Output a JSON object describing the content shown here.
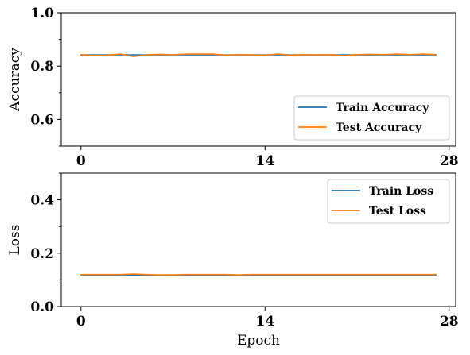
{
  "chart_data": [
    {
      "type": "line",
      "title": "",
      "xlabel": "",
      "ylabel": "Accuracy",
      "xlim": [
        -1.5,
        28.5
      ],
      "ylim": [
        0.5,
        1.0
      ],
      "xticks": [
        0,
        14,
        28
      ],
      "xtick_labels": [
        "0",
        "14",
        "28"
      ],
      "yticks": [
        0.6,
        0.8,
        1.0
      ],
      "ytick_labels": [
        "0.6",
        "0.8",
        "1.0"
      ],
      "y_minor_ticks": [
        0.5,
        0.7,
        0.9
      ],
      "grid": false,
      "legend_position": "lower-right",
      "x": [
        0,
        1,
        2,
        3,
        4,
        5,
        6,
        7,
        8,
        9,
        10,
        11,
        12,
        13,
        14,
        15,
        16,
        17,
        18,
        19,
        20,
        21,
        22,
        23,
        24,
        25,
        26,
        27
      ],
      "series": [
        {
          "name": "Train Accuracy",
          "color": "#1f77b4",
          "values": [
            0.842,
            0.842,
            0.842,
            0.842,
            0.842,
            0.842,
            0.842,
            0.842,
            0.842,
            0.842,
            0.842,
            0.842,
            0.842,
            0.842,
            0.842,
            0.842,
            0.842,
            0.842,
            0.842,
            0.842,
            0.842,
            0.842,
            0.842,
            0.842,
            0.842,
            0.842,
            0.842,
            0.842
          ]
        },
        {
          "name": "Test Accuracy",
          "color": "#ff7f0e",
          "values": [
            0.842,
            0.84,
            0.841,
            0.845,
            0.836,
            0.842,
            0.844,
            0.842,
            0.845,
            0.845,
            0.845,
            0.841,
            0.843,
            0.842,
            0.841,
            0.845,
            0.841,
            0.843,
            0.842,
            0.843,
            0.839,
            0.843,
            0.844,
            0.843,
            0.845,
            0.843,
            0.845,
            0.843
          ]
        }
      ]
    },
    {
      "type": "line",
      "title": "",
      "xlabel": "Epoch",
      "ylabel": "Loss",
      "xlim": [
        -1.5,
        28.5
      ],
      "ylim": [
        0.0,
        0.5
      ],
      "xticks": [
        0,
        14,
        28
      ],
      "xtick_labels": [
        "0",
        "14",
        "28"
      ],
      "yticks": [
        0.0,
        0.2,
        0.4
      ],
      "ytick_labels": [
        "0.0",
        "0.2",
        "0.4"
      ],
      "y_minor_ticks": [
        0.1,
        0.3,
        0.5
      ],
      "grid": false,
      "legend_position": "upper-right",
      "x": [
        0,
        1,
        2,
        3,
        4,
        5,
        6,
        7,
        8,
        9,
        10,
        11,
        12,
        13,
        14,
        15,
        16,
        17,
        18,
        19,
        20,
        21,
        22,
        23,
        24,
        25,
        26,
        27
      ],
      "series": [
        {
          "name": "Train Loss",
          "color": "#1f77b4",
          "values": [
            0.118,
            0.118,
            0.118,
            0.118,
            0.118,
            0.118,
            0.118,
            0.118,
            0.118,
            0.118,
            0.118,
            0.118,
            0.118,
            0.118,
            0.118,
            0.118,
            0.118,
            0.118,
            0.118,
            0.118,
            0.118,
            0.118,
            0.118,
            0.118,
            0.118,
            0.118,
            0.118,
            0.118
          ]
        },
        {
          "name": "Test Loss",
          "color": "#ff7f0e",
          "values": [
            0.12,
            0.12,
            0.12,
            0.12,
            0.122,
            0.12,
            0.119,
            0.119,
            0.12,
            0.12,
            0.12,
            0.12,
            0.119,
            0.12,
            0.12,
            0.12,
            0.12,
            0.12,
            0.12,
            0.12,
            0.12,
            0.12,
            0.12,
            0.12,
            0.12,
            0.12,
            0.12,
            0.12
          ]
        }
      ]
    }
  ]
}
